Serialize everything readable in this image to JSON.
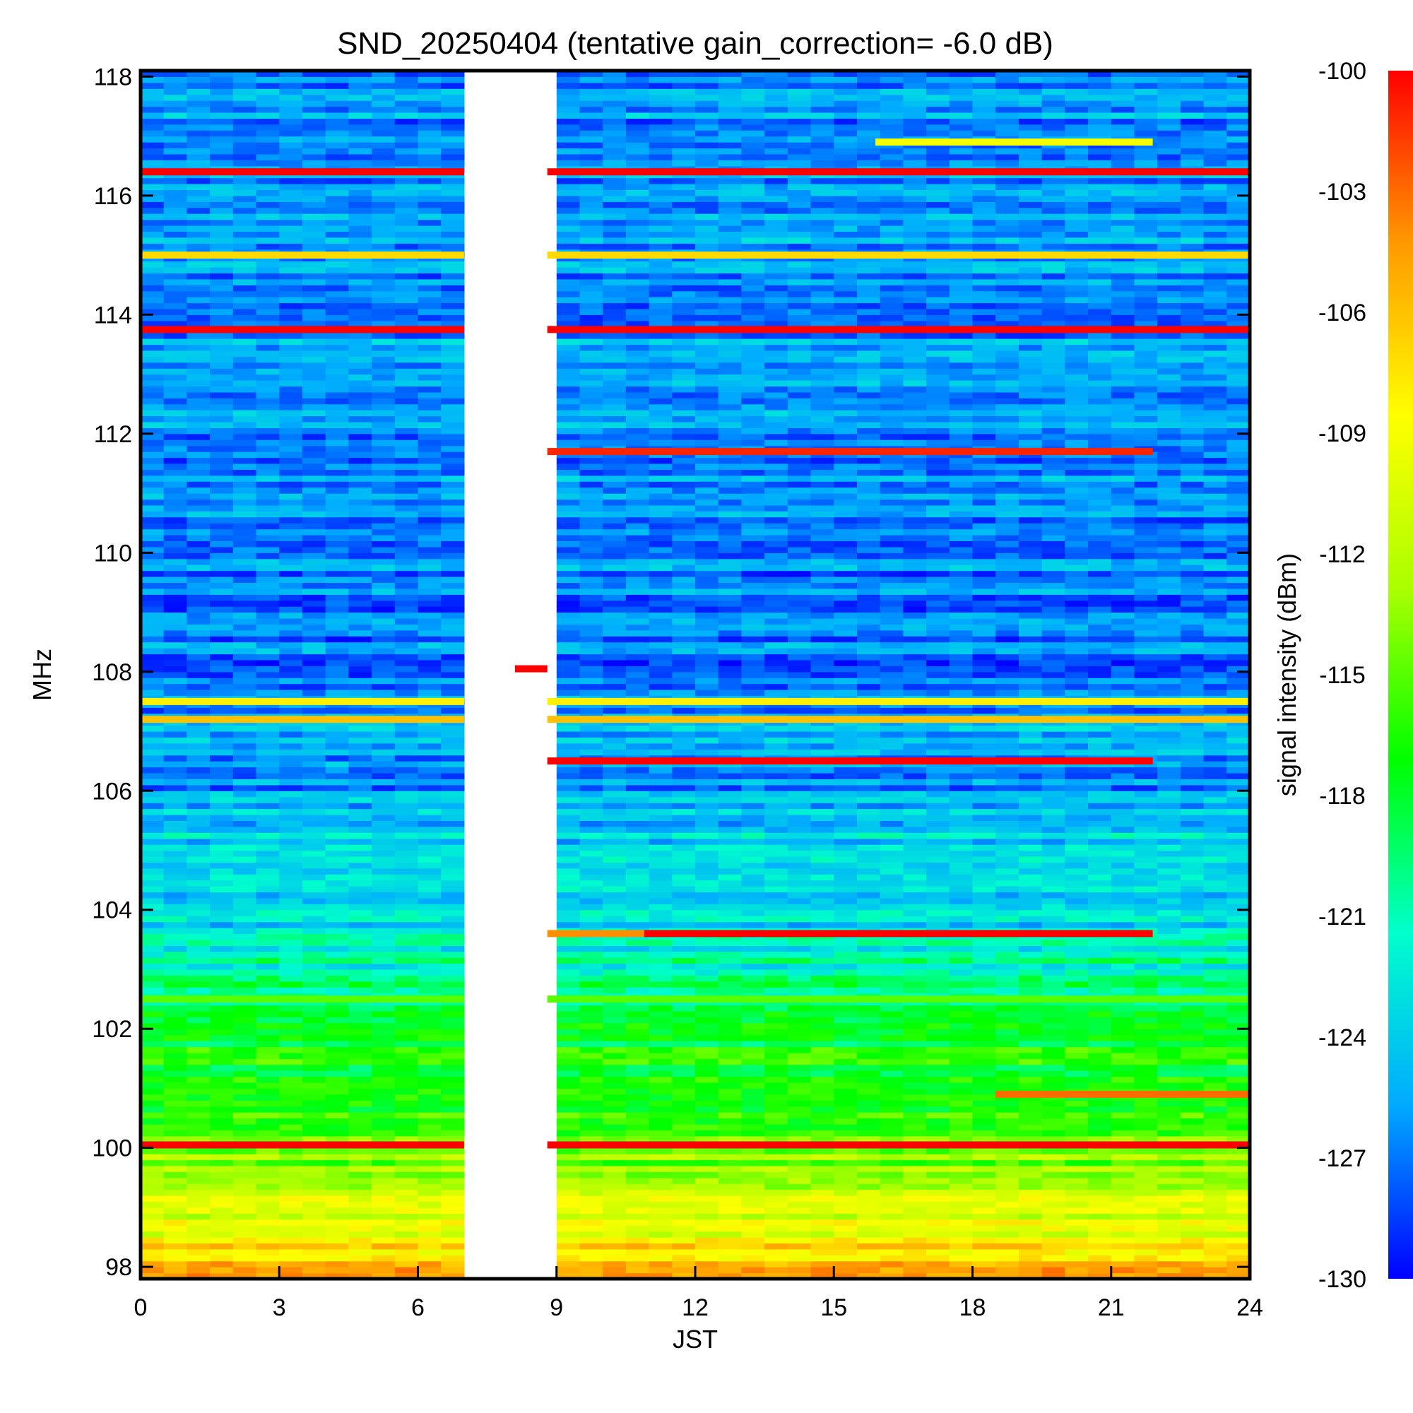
{
  "chart_data": {
    "type": "heatmap",
    "title": "SND_20250404 (tentative gain_correction= -6.0 dB)",
    "xlabel": "JST",
    "ylabel": "MHz",
    "xlim": [
      0,
      24
    ],
    "ylim": [
      97.8,
      118.1
    ],
    "x_ticks": [
      0,
      3,
      6,
      9,
      12,
      15,
      18,
      21,
      24
    ],
    "x_tick_labels": [
      "0",
      "3",
      "6",
      "9",
      "12",
      "15",
      "18",
      "21",
      "24"
    ],
    "y_ticks": [
      98,
      100,
      102,
      104,
      106,
      108,
      110,
      112,
      114,
      116,
      118
    ],
    "y_tick_labels": [
      "98",
      "100",
      "102",
      "104",
      "106",
      "108",
      "110",
      "112",
      "114",
      "116",
      "118"
    ],
    "data_gap_hours": [
      7.0,
      8.8
    ],
    "colorbar": {
      "label": "signal intensity (dBm)",
      "range": [
        -130,
        -100
      ],
      "ticks": [
        -100,
        -103,
        -106,
        -109,
        -112,
        -115,
        -118,
        -121,
        -124,
        -127,
        -130
      ],
      "tick_labels": [
        "-100",
        "-103",
        "-106",
        "-109",
        "-112",
        "-115",
        "-118",
        "-121",
        "-124",
        "-127",
        "-130"
      ],
      "colors": [
        "#0000ff",
        "#00aaff",
        "#00ffcc",
        "#00ff00",
        "#aaff00",
        "#ffff00",
        "#ff9900",
        "#ff0000"
      ]
    },
    "background_profile": [
      {
        "freq": 97.8,
        "dbm": -105
      },
      {
        "freq": 98.5,
        "dbm": -109
      },
      {
        "freq": 99.5,
        "dbm": -113
      },
      {
        "freq": 100.5,
        "dbm": -116
      },
      {
        "freq": 102.0,
        "dbm": -118
      },
      {
        "freq": 103.0,
        "dbm": -121
      },
      {
        "freq": 104.0,
        "dbm": -124
      },
      {
        "freq": 105.0,
        "dbm": -123
      },
      {
        "freq": 106.0,
        "dbm": -126
      },
      {
        "freq": 107.0,
        "dbm": -125
      },
      {
        "freq": 108.0,
        "dbm": -127
      },
      {
        "freq": 112.0,
        "dbm": -126
      },
      {
        "freq": 118.1,
        "dbm": -126
      }
    ],
    "signals": [
      {
        "freq": 116.4,
        "dbm": -100,
        "t_start": 0,
        "t_end": 24
      },
      {
        "freq": 115.0,
        "dbm": -107,
        "t_start": 0,
        "t_end": 24
      },
      {
        "freq": 113.75,
        "dbm": -100,
        "t_start": 0,
        "t_end": 24
      },
      {
        "freq": 111.7,
        "dbm": -101,
        "t_start": 8.8,
        "t_end": 21.9
      },
      {
        "freq": 116.9,
        "dbm": -109,
        "t_start": 15.9,
        "t_end": 21.9
      },
      {
        "freq": 107.5,
        "dbm": -108,
        "t_start": 0,
        "t_end": 24
      },
      {
        "freq": 107.2,
        "dbm": -106,
        "t_start": 0,
        "t_end": 24
      },
      {
        "freq": 106.5,
        "dbm": -100,
        "t_start": 8.8,
        "t_end": 21.9
      },
      {
        "freq": 103.6,
        "dbm": -104,
        "t_start": 8.8,
        "t_end": 10.9
      },
      {
        "freq": 103.6,
        "dbm": -100,
        "t_start": 10.9,
        "t_end": 21.9
      },
      {
        "freq": 100.9,
        "dbm": -103,
        "t_start": 18.5,
        "t_end": 24
      },
      {
        "freq": 100.05,
        "dbm": -100,
        "t_start": 0,
        "t_end": 24
      },
      {
        "freq": 102.5,
        "dbm": -115,
        "t_start": 0,
        "t_end": 24
      },
      {
        "freq": 108.05,
        "dbm": -100,
        "t_start": 8.1,
        "t_end": 8.8
      }
    ]
  }
}
